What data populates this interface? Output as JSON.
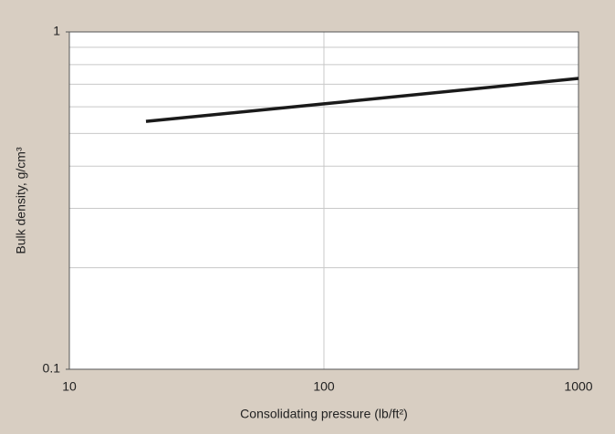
{
  "chart_data": {
    "type": "line",
    "x_label": "Consolidating pressure (lb/ft²)",
    "y_label": "Bulk density, g/cm³",
    "x_log": true,
    "y_log": true,
    "xlim": [
      10,
      1000
    ],
    "ylim": [
      0.1,
      1
    ],
    "xticks": [
      10,
      100,
      1000
    ],
    "yticks": [
      0.1,
      1
    ],
    "y_minor_grid": [
      0.2,
      0.3,
      0.4,
      0.5,
      0.6,
      0.7,
      0.8,
      0.9
    ],
    "grid": true,
    "series": [
      {
        "color": "#1a1a1a",
        "x": [
          20,
          100,
          1000
        ],
        "values": [
          0.543,
          0.612,
          0.728
        ]
      }
    ]
  }
}
